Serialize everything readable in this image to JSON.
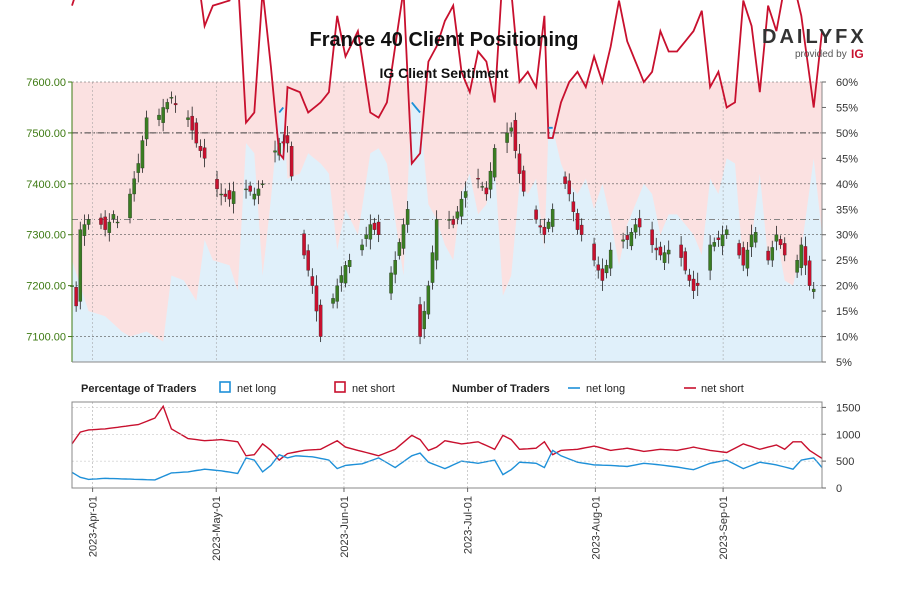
{
  "chart_data": {
    "type": "line",
    "title": "France 40 Client Positioning",
    "subtitle": "IG Client Sentiment",
    "brand": {
      "name": "DAILYFX",
      "provided_by": "provided by",
      "provider": "IG"
    },
    "price_axis": {
      "ylim": [
        7050,
        7600
      ],
      "ticks": [
        7100,
        7200,
        7300,
        7400,
        7500,
        7600
      ],
      "tick_labels": [
        "7100.00",
        "7200.00",
        "7300.00",
        "7400.00",
        "7500.00",
        "7600.00"
      ]
    },
    "pct_axis": {
      "ylim": [
        5,
        60
      ],
      "ticks": [
        5,
        10,
        15,
        20,
        25,
        30,
        35,
        40,
        45,
        50,
        55,
        60
      ],
      "tick_labels": [
        "5%",
        "10%",
        "15%",
        "20%",
        "25%",
        "30%",
        "35%",
        "40%",
        "45%",
        "50%",
        "55%",
        "60%"
      ]
    },
    "count_axis": {
      "ylim": [
        0,
        1600
      ],
      "ticks": [
        0,
        500,
        1000,
        1500
      ],
      "tick_labels": [
        "0",
        "500",
        "1000",
        "1500"
      ]
    },
    "x_axis": {
      "start": "2023-03-27",
      "end": "2023-09-25",
      "ticks": [
        "2023-04-01",
        "2023-05-01",
        "2023-06-01",
        "2023-07-01",
        "2023-08-01",
        "2023-09-01"
      ],
      "tick_labels": [
        "2023-Apr-01",
        "2023-May-01",
        "2023-Jun-01",
        "2023-Jul-01",
        "2023-Aug-01",
        "2023-Sep-01"
      ]
    },
    "legend": {
      "pct_title": "Percentage of Traders",
      "num_title": "Number of Traders",
      "net_long": "net long",
      "net_short": "net short"
    },
    "colors": {
      "long": "#1e90d8",
      "short": "#c8102e",
      "long_fill": "#e0f0fa",
      "short_fill": "#fbe1e1",
      "up": "#3a7d22",
      "down": "#c8102e",
      "price_axis": "#3d7a12"
    },
    "net_long_pct_keyframes": [
      [
        0,
        25
      ],
      [
        2,
        20
      ],
      [
        4,
        15
      ],
      [
        8,
        14
      ],
      [
        12,
        11
      ],
      [
        14,
        10
      ],
      [
        18,
        11
      ],
      [
        22,
        9
      ],
      [
        24,
        22
      ],
      [
        27,
        21
      ],
      [
        30,
        17
      ],
      [
        32,
        29
      ],
      [
        34,
        25
      ],
      [
        38,
        24
      ],
      [
        40,
        19
      ],
      [
        42,
        48
      ],
      [
        44,
        46
      ],
      [
        46,
        22
      ],
      [
        48,
        37
      ],
      [
        50,
        54
      ],
      [
        51,
        55
      ],
      [
        52,
        41
      ],
      [
        55,
        42
      ],
      [
        57,
        46
      ],
      [
        60,
        44
      ],
      [
        62,
        42
      ],
      [
        64,
        27
      ],
      [
        66,
        35
      ],
      [
        69,
        30
      ],
      [
        72,
        46
      ],
      [
        74,
        47
      ],
      [
        76,
        44
      ],
      [
        78,
        33
      ],
      [
        80,
        22
      ],
      [
        82,
        56
      ],
      [
        83,
        55
      ],
      [
        84,
        54
      ],
      [
        86,
        36
      ],
      [
        88,
        33
      ],
      [
        90,
        28
      ],
      [
        92,
        25
      ],
      [
        94,
        38
      ],
      [
        96,
        42
      ],
      [
        98,
        34
      ],
      [
        100,
        36
      ],
      [
        102,
        44
      ],
      [
        104,
        18
      ],
      [
        106,
        22
      ],
      [
        108,
        40
      ],
      [
        110,
        38
      ],
      [
        112,
        41
      ],
      [
        114,
        27
      ],
      [
        115,
        51
      ],
      [
        116,
        51
      ],
      [
        118,
        44
      ],
      [
        120,
        40
      ],
      [
        122,
        38
      ],
      [
        124,
        41
      ],
      [
        126,
        35
      ],
      [
        128,
        40
      ],
      [
        130,
        33
      ],
      [
        132,
        24
      ],
      [
        134,
        32
      ],
      [
        136,
        36
      ],
      [
        138,
        40
      ],
      [
        140,
        38
      ],
      [
        142,
        30
      ],
      [
        144,
        34
      ],
      [
        146,
        34
      ],
      [
        148,
        32
      ],
      [
        150,
        30
      ],
      [
        152,
        26
      ],
      [
        154,
        41
      ],
      [
        156,
        38
      ],
      [
        158,
        45
      ],
      [
        160,
        44
      ],
      [
        162,
        24
      ],
      [
        164,
        29
      ],
      [
        166,
        42
      ],
      [
        168,
        25
      ],
      [
        170,
        30
      ],
      [
        172,
        21
      ],
      [
        174,
        20
      ],
      [
        176,
        27
      ],
      [
        179,
        45
      ],
      [
        181,
        30
      ]
    ],
    "price_keyframes": [
      [
        0,
        7200
      ],
      [
        1,
        7160
      ],
      [
        2,
        7310
      ],
      [
        4,
        7330
      ],
      [
        6,
        7330
      ],
      [
        8,
        7310
      ],
      [
        10,
        7340
      ],
      [
        12,
        7310
      ],
      [
        14,
        7380
      ],
      [
        16,
        7440
      ],
      [
        18,
        7530
      ],
      [
        20,
        7520
      ],
      [
        22,
        7550
      ],
      [
        24,
        7570
      ],
      [
        26,
        7540
      ],
      [
        28,
        7530
      ],
      [
        30,
        7480
      ],
      [
        32,
        7450
      ],
      [
        34,
        7400
      ],
      [
        36,
        7380
      ],
      [
        38,
        7370
      ],
      [
        40,
        7400
      ],
      [
        42,
        7390
      ],
      [
        44,
        7380
      ],
      [
        46,
        7400
      ],
      [
        48,
        7450
      ],
      [
        50,
        7480
      ],
      [
        52,
        7480
      ],
      [
        54,
        7350
      ],
      [
        56,
        7260
      ],
      [
        58,
        7200
      ],
      [
        60,
        7100
      ],
      [
        62,
        7150
      ],
      [
        64,
        7200
      ],
      [
        66,
        7240
      ],
      [
        68,
        7260
      ],
      [
        70,
        7280
      ],
      [
        72,
        7320
      ],
      [
        74,
        7300
      ],
      [
        76,
        7200
      ],
      [
        78,
        7250
      ],
      [
        80,
        7320
      ],
      [
        82,
        7380
      ],
      [
        83,
        7160
      ],
      [
        84,
        7100
      ],
      [
        86,
        7200
      ],
      [
        88,
        7330
      ],
      [
        90,
        7340
      ],
      [
        92,
        7320
      ],
      [
        94,
        7370
      ],
      [
        96,
        7400
      ],
      [
        98,
        7410
      ],
      [
        100,
        7380
      ],
      [
        102,
        7470
      ],
      [
        104,
        7490
      ],
      [
        106,
        7510
      ],
      [
        108,
        7420
      ],
      [
        110,
        7350
      ],
      [
        112,
        7330
      ],
      [
        114,
        7300
      ],
      [
        116,
        7350
      ],
      [
        118,
        7420
      ],
      [
        120,
        7380
      ],
      [
        122,
        7310
      ],
      [
        124,
        7290
      ],
      [
        126,
        7250
      ],
      [
        128,
        7210
      ],
      [
        130,
        7270
      ],
      [
        132,
        7290
      ],
      [
        134,
        7290
      ],
      [
        136,
        7320
      ],
      [
        138,
        7310
      ],
      [
        140,
        7280
      ],
      [
        142,
        7260
      ],
      [
        144,
        7270
      ],
      [
        146,
        7280
      ],
      [
        148,
        7230
      ],
      [
        150,
        7190
      ],
      [
        152,
        7210
      ],
      [
        154,
        7280
      ],
      [
        156,
        7290
      ],
      [
        158,
        7310
      ],
      [
        160,
        7280
      ],
      [
        162,
        7240
      ],
      [
        164,
        7300
      ],
      [
        166,
        7310
      ],
      [
        168,
        7250
      ],
      [
        170,
        7300
      ],
      [
        172,
        7260
      ],
      [
        174,
        7220
      ],
      [
        176,
        7280
      ],
      [
        178,
        7200
      ],
      [
        181,
        7180
      ]
    ],
    "net_long_count_keyframes": [
      [
        0,
        290
      ],
      [
        2,
        200
      ],
      [
        4,
        160
      ],
      [
        8,
        180
      ],
      [
        12,
        170
      ],
      [
        16,
        160
      ],
      [
        20,
        150
      ],
      [
        24,
        280
      ],
      [
        28,
        300
      ],
      [
        32,
        350
      ],
      [
        36,
        320
      ],
      [
        40,
        270
      ],
      [
        42,
        560
      ],
      [
        44,
        520
      ],
      [
        46,
        300
      ],
      [
        48,
        420
      ],
      [
        50,
        620
      ],
      [
        52,
        560
      ],
      [
        54,
        600
      ],
      [
        58,
        580
      ],
      [
        62,
        520
      ],
      [
        64,
        360
      ],
      [
        66,
        420
      ],
      [
        70,
        450
      ],
      [
        74,
        560
      ],
      [
        78,
        380
      ],
      [
        82,
        600
      ],
      [
        84,
        650
      ],
      [
        86,
        480
      ],
      [
        88,
        420
      ],
      [
        90,
        360
      ],
      [
        94,
        500
      ],
      [
        98,
        460
      ],
      [
        102,
        520
      ],
      [
        104,
        250
      ],
      [
        106,
        340
      ],
      [
        108,
        480
      ],
      [
        112,
        460
      ],
      [
        114,
        380
      ],
      [
        116,
        700
      ],
      [
        118,
        600
      ],
      [
        122,
        480
      ],
      [
        126,
        430
      ],
      [
        130,
        420
      ],
      [
        134,
        400
      ],
      [
        138,
        460
      ],
      [
        142,
        430
      ],
      [
        146,
        390
      ],
      [
        150,
        340
      ],
      [
        154,
        460
      ],
      [
        158,
        520
      ],
      [
        162,
        360
      ],
      [
        166,
        480
      ],
      [
        170,
        430
      ],
      [
        174,
        350
      ],
      [
        176,
        520
      ],
      [
        179,
        560
      ],
      [
        181,
        380
      ]
    ],
    "net_short_count_keyframes": [
      [
        0,
        820
      ],
      [
        2,
        1040
      ],
      [
        4,
        1080
      ],
      [
        8,
        1100
      ],
      [
        12,
        1140
      ],
      [
        16,
        1180
      ],
      [
        20,
        1300
      ],
      [
        22,
        1520
      ],
      [
        24,
        1100
      ],
      [
        28,
        920
      ],
      [
        32,
        880
      ],
      [
        36,
        900
      ],
      [
        40,
        860
      ],
      [
        42,
        600
      ],
      [
        44,
        620
      ],
      [
        46,
        820
      ],
      [
        48,
        700
      ],
      [
        50,
        520
      ],
      [
        52,
        640
      ],
      [
        56,
        700
      ],
      [
        60,
        720
      ],
      [
        64,
        880
      ],
      [
        66,
        760
      ],
      [
        70,
        680
      ],
      [
        74,
        600
      ],
      [
        78,
        720
      ],
      [
        82,
        980
      ],
      [
        84,
        900
      ],
      [
        86,
        700
      ],
      [
        88,
        760
      ],
      [
        90,
        880
      ],
      [
        94,
        820
      ],
      [
        98,
        860
      ],
      [
        102,
        720
      ],
      [
        104,
        980
      ],
      [
        106,
        900
      ],
      [
        108,
        720
      ],
      [
        112,
        740
      ],
      [
        114,
        860
      ],
      [
        116,
        620
      ],
      [
        118,
        700
      ],
      [
        122,
        720
      ],
      [
        126,
        780
      ],
      [
        130,
        700
      ],
      [
        134,
        740
      ],
      [
        138,
        680
      ],
      [
        142,
        720
      ],
      [
        146,
        700
      ],
      [
        150,
        760
      ],
      [
        154,
        700
      ],
      [
        158,
        660
      ],
      [
        162,
        820
      ],
      [
        166,
        720
      ],
      [
        170,
        800
      ],
      [
        172,
        720
      ],
      [
        174,
        860
      ],
      [
        176,
        860
      ],
      [
        178,
        700
      ],
      [
        181,
        550
      ]
    ]
  }
}
